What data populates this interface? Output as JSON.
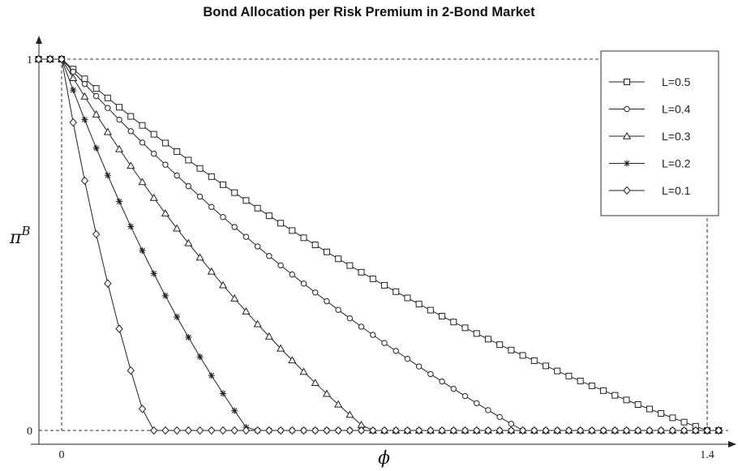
{
  "chart_data": {
    "type": "line",
    "title": "Bond Allocation per Risk Premium in 2-Bond Market",
    "xlabel": "ϕ",
    "ylabel": "π",
    "ylabel_superscript": "B",
    "xlim": [
      -0.05,
      1.44
    ],
    "ylim": [
      -0.03,
      1.06
    ],
    "x_ticks": [
      0,
      1.4
    ],
    "x_tick_labels": [
      "0",
      "1.4"
    ],
    "y_ticks": [
      0,
      1
    ],
    "y_tick_labels": [
      "0",
      "1"
    ],
    "grid": false,
    "reference_lines": "dashed lines at y=0, y=1, x=0 and x=1.4",
    "legend": {
      "position": "top-right",
      "entries": [
        "L=0.5",
        "L=0.4",
        "L=0.3",
        "L=0.2",
        "L=0.1"
      ]
    },
    "line_color": "#222222",
    "sampling": {
      "x_start": -0.05,
      "x_end": 1.44,
      "step": 0.025
    },
    "series": [
      {
        "name": "L=0.5",
        "marker": "square",
        "curve": "exponential",
        "k": 1.58,
        "zero_at": 1.4
      },
      {
        "name": "L=0.4",
        "marker": "circle",
        "curve": "exponential",
        "k": 1.55,
        "zero_at": 1.0
      },
      {
        "name": "L=0.3",
        "marker": "triangle",
        "curve": "exponential",
        "k": 1.0,
        "zero_at": 0.664
      },
      {
        "name": "L=0.2",
        "marker": "star",
        "curve": "exponential",
        "k": 0.6,
        "zero_at": 0.405
      },
      {
        "name": "L=0.1",
        "marker": "diamond",
        "curve": "exponential",
        "k": 0.3,
        "zero_at": 0.19
      }
    ]
  }
}
